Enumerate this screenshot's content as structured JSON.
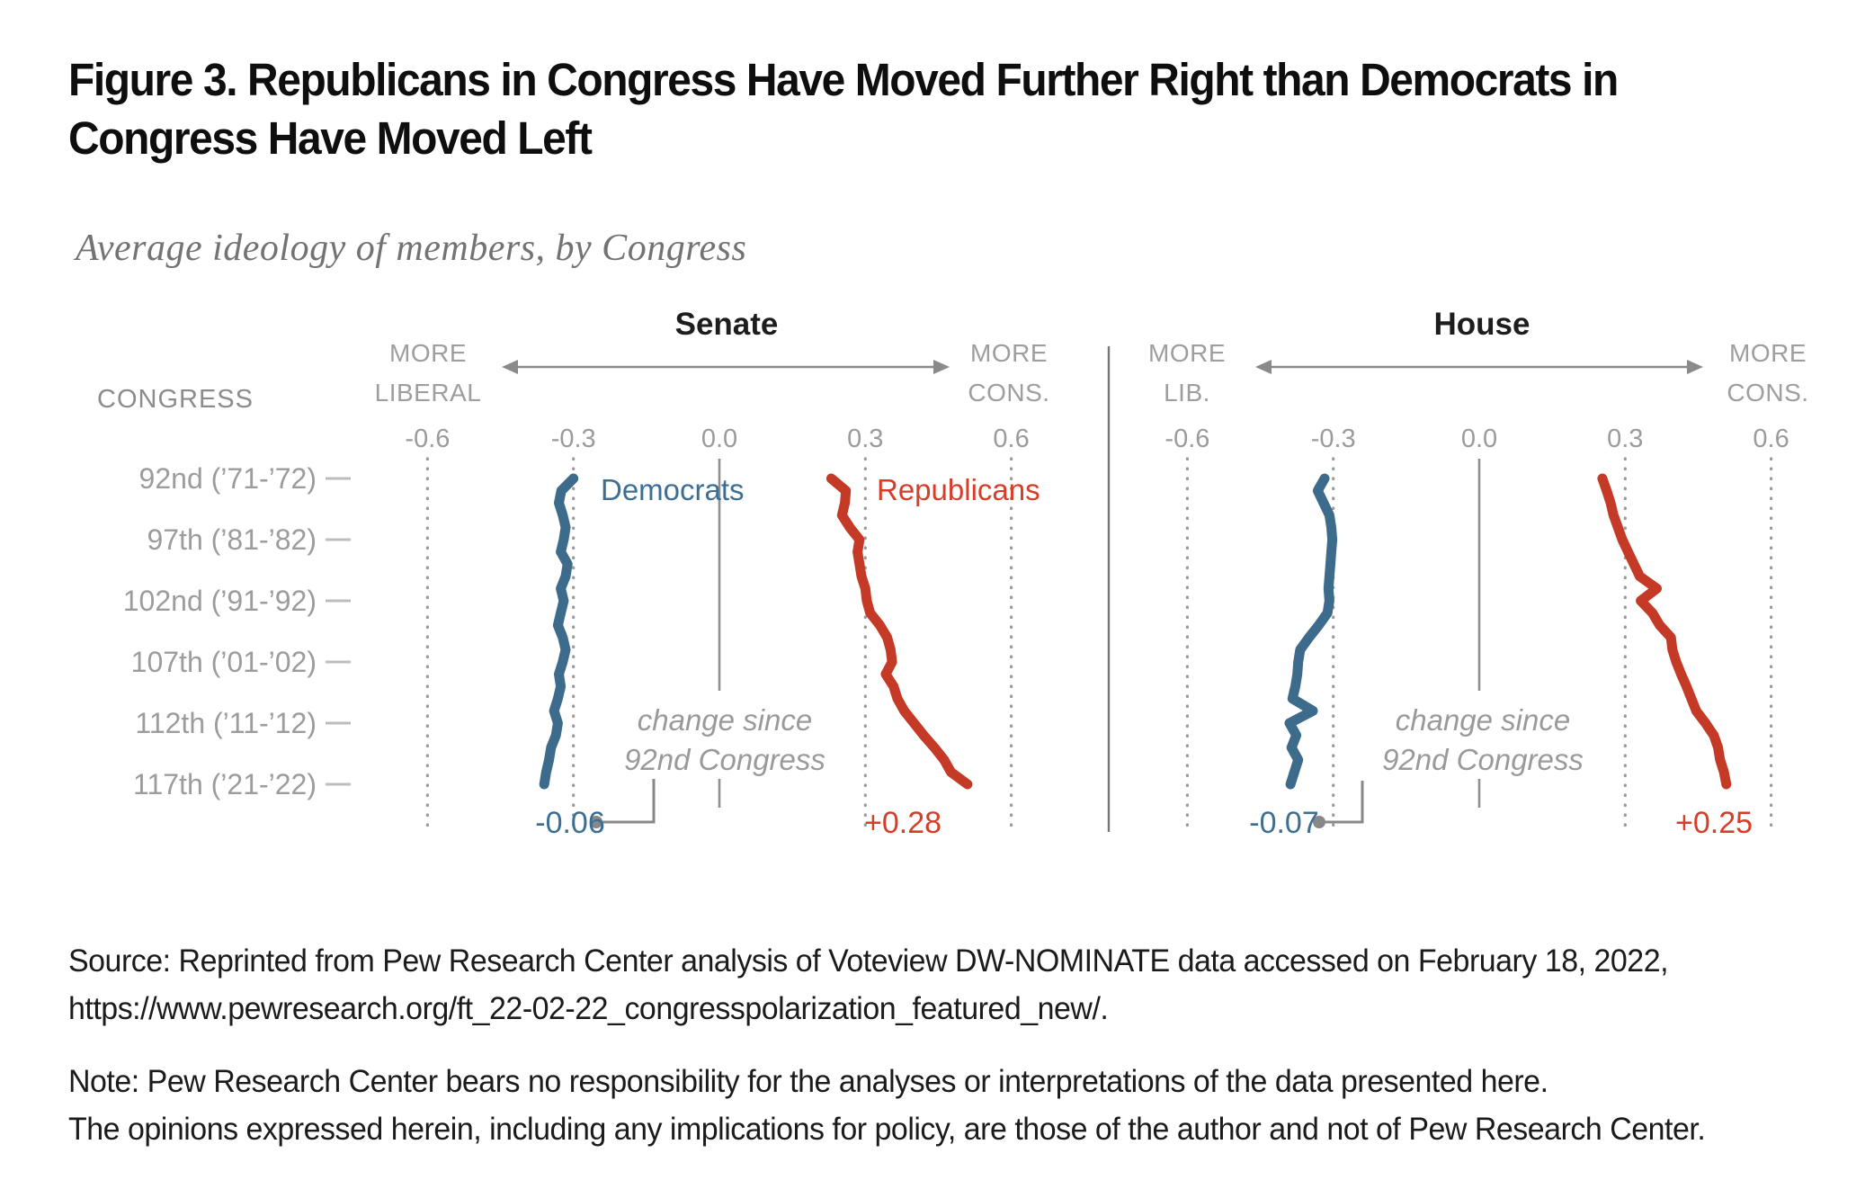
{
  "figure": {
    "title": "Figure 3. Republicans in Congress Have Moved Further Right than Democrats in Congress Have Moved Left",
    "subtitle": "Average ideology of members, by Congress"
  },
  "axis": {
    "congress_header": "CONGRESS",
    "rows": [
      "92nd (’71-’72)",
      "97th (’81-’82)",
      "102nd (’91-’92)",
      "107th (’01-’02)",
      "112th (’11-’12)",
      "117th (’21-’22)"
    ],
    "ticks": [
      "-0.6",
      "-0.3",
      "0.0",
      "0.3",
      "0.6"
    ]
  },
  "panels": [
    {
      "title": "Senate",
      "left_line1": "MORE",
      "left_line2": "LIBERAL",
      "right_line1": "MORE",
      "right_line2": "CONS.",
      "legend_democrats": "Democrats",
      "legend_republicans": "Republicans",
      "note_line1": "change since",
      "note_line2": "92nd Congress",
      "democrat_change": "-0.06",
      "republican_change": "+0.28"
    },
    {
      "title": "House",
      "left_line1": "MORE",
      "left_line2": "LIB.",
      "right_line1": "MORE",
      "right_line2": "CONS.",
      "note_line1": "change since",
      "note_line2": "92nd Congress",
      "democrat_change": "-0.07",
      "republican_change": "+0.25"
    }
  ],
  "chart_data": {
    "type": "line",
    "orientation": "value-axis-horizontal, congress-axis-vertical (92nd top to 117th bottom)",
    "value_axis_range": [
      -0.6,
      0.6
    ],
    "value_ticks": [
      -0.6,
      -0.3,
      0.0,
      0.3,
      0.6
    ],
    "congresses": [
      92,
      93,
      94,
      95,
      96,
      97,
      98,
      99,
      100,
      101,
      102,
      103,
      104,
      105,
      106,
      107,
      108,
      109,
      110,
      111,
      112,
      113,
      114,
      115,
      116,
      117
    ],
    "series": [
      {
        "name": "Senate Democrats",
        "panel": "senate",
        "party": "democrat",
        "values": [
          -0.3,
          -0.325,
          -0.33,
          -0.322,
          -0.316,
          -0.32,
          -0.326,
          -0.312,
          -0.316,
          -0.326,
          -0.32,
          -0.326,
          -0.332,
          -0.322,
          -0.316,
          -0.322,
          -0.33,
          -0.326,
          -0.332,
          -0.34,
          -0.332,
          -0.336,
          -0.346,
          -0.35,
          -0.356,
          -0.36
        ]
      },
      {
        "name": "Senate Republicans",
        "panel": "senate",
        "party": "republican",
        "values": [
          0.23,
          0.26,
          0.258,
          0.252,
          0.268,
          0.288,
          0.284,
          0.288,
          0.292,
          0.3,
          0.303,
          0.31,
          0.33,
          0.345,
          0.352,
          0.355,
          0.342,
          0.358,
          0.366,
          0.38,
          0.4,
          0.42,
          0.442,
          0.462,
          0.476,
          0.51
        ]
      },
      {
        "name": "House Democrats",
        "panel": "house",
        "party": "democrat",
        "values": [
          -0.318,
          -0.332,
          -0.32,
          -0.308,
          -0.304,
          -0.302,
          -0.304,
          -0.306,
          -0.308,
          -0.31,
          -0.308,
          -0.312,
          -0.33,
          -0.35,
          -0.368,
          -0.372,
          -0.374,
          -0.378,
          -0.384,
          -0.342,
          -0.39,
          -0.376,
          -0.386,
          -0.372,
          -0.38,
          -0.388
        ]
      },
      {
        "name": "House Republicans",
        "panel": "house",
        "party": "republican",
        "values": [
          0.253,
          0.262,
          0.27,
          0.276,
          0.285,
          0.294,
          0.306,
          0.318,
          0.33,
          0.365,
          0.332,
          0.356,
          0.371,
          0.394,
          0.397,
          0.405,
          0.415,
          0.426,
          0.436,
          0.446,
          0.465,
          0.482,
          0.491,
          0.495,
          0.503,
          0.508
        ]
      }
    ],
    "changes_since_92nd": {
      "senate_democrats": "-0.06",
      "senate_republicans": "+0.28",
      "house_democrats": "-0.07",
      "house_republicans": "+0.25"
    }
  },
  "colors": {
    "democrat_line": "#3d6b8c",
    "republican_line": "#c43a27",
    "democrat_text": "#3c6f94",
    "republican_text": "#d63e29"
  },
  "source": {
    "line1": "Source: Reprinted from Pew Research Center analysis of Voteview DW-NOMINATE data accessed on February 18, 2022,",
    "line2": "https://www.pewresearch.org/ft_22-02-22_congresspolarization_featured_new/."
  },
  "note": {
    "line1": "Note: Pew Research Center bears no responsibility for the analyses or interpretations of the data presented here.",
    "line2": "The opinions expressed herein, including any implications for policy, are those of the author and not of Pew Research Center."
  }
}
